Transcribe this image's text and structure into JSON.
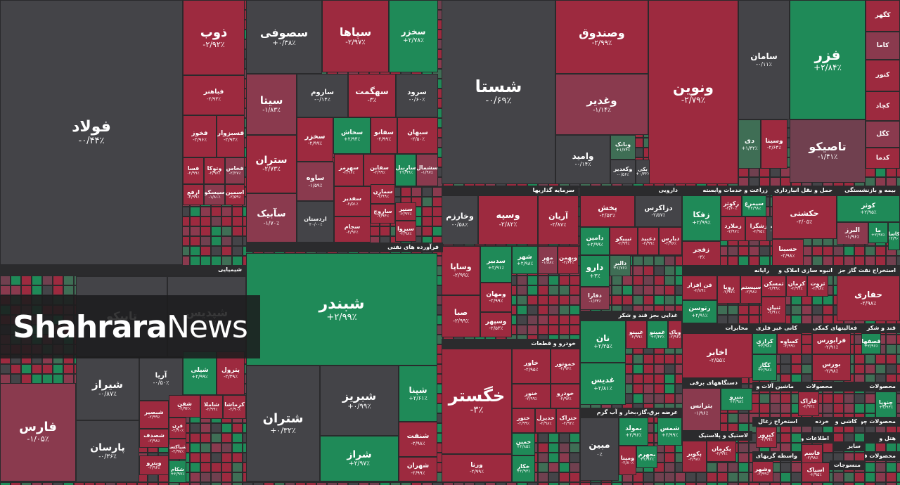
{
  "chart_data": {
    "type": "treemap",
    "colors": {
      "neg_strong": "#9d2a3f",
      "neg_mid": "#8a3a4e",
      "neg_light": "#70404f",
      "neutral": "#444448",
      "pos_light": "#3f6e55",
      "pos_strong": "#1f8a58",
      "sector_bar": "#2b2b2d"
    },
    "sectors": [
      "شیمیایی",
      "فرآورده های نفتی",
      "سرمایه گذاریها",
      "دارویی",
      "زراعت و خدمات وابسته",
      "حمل و نقل انبارداری و",
      "بیمه و بازنشستگی",
      "رایانه",
      "انبوه سازی املاک و",
      "استخراج نفت گاز جز",
      "غذایی بجز قند و شکر",
      "خودرو و قطعات",
      "مخابرات",
      "کانی غیر فلزی",
      "فعالیتهای کمکی",
      "قند و شکر",
      "دستگاههای برقی",
      "ماشین آلات و",
      "محصولات",
      "عرضه برق،گاز،بخار و آب گرم",
      "استخراج زغال",
      "لاستیک و پلاستیک",
      "واسطه گریهای",
      "اطلاعات و",
      "محصولات چوبی",
      "کاشی و",
      "هتل و",
      "منسوجات",
      "محصولات فلزی",
      "خرده",
      "سایر"
    ],
    "tiles": [
      {
        "name": "فولاد",
        "change": "-۰/۴۴٪",
        "color": "#444448"
      },
      {
        "name": "ذوب",
        "change": "-۲/۹۲٪",
        "color": "#9d2a3f"
      },
      {
        "name": "فباهنر",
        "change": "-۲/۹۳٪",
        "color": "#9d2a3f"
      },
      {
        "name": "فخوز",
        "change": "-۲/۹۶٪",
        "color": "#9d2a3f"
      },
      {
        "name": "فسبزوار",
        "change": "-۲/۹۳٪",
        "color": "#9d2a3f"
      },
      {
        "name": "فسا",
        "change": "-۲/۹۹٪",
        "color": "#9d2a3f"
      },
      {
        "name": "وتوکا",
        "change": "-۲/۹۷٪",
        "color": "#9d2a3f"
      },
      {
        "name": "فخاس",
        "change": "-۲/۲۷٪",
        "color": "#8a3a4e"
      },
      {
        "name": "ارفع",
        "change": "-۲/۹۹٪",
        "color": "#9d2a3f"
      },
      {
        "name": "سیسکو",
        "change": "-۱/۸۱٪",
        "color": "#8a3a4e"
      },
      {
        "name": "اسمین",
        "change": "-۲/۵۹٪",
        "color": "#9d2a3f"
      },
      {
        "name": "سصوفی",
        "change": "+۰/۳۸٪",
        "color": "#444448"
      },
      {
        "name": "سپاها",
        "change": "-۲/۹۷٪",
        "color": "#9d2a3f"
      },
      {
        "name": "سخزر",
        "change": "+۲/۷۸٪",
        "color": "#1f8a58"
      },
      {
        "name": "سیتا",
        "change": "-۱/۸۳٪",
        "color": "#8a3a4e"
      },
      {
        "name": "ساروم",
        "change": "-۰/۱۴٪",
        "color": "#444448"
      },
      {
        "name": "سهگمت",
        "change": "-۳٪",
        "color": "#9d2a3f"
      },
      {
        "name": "سرود",
        "change": "-۰/۶۰٪",
        "color": "#444448"
      },
      {
        "name": "سخزر",
        "change": "-۲/۹۹٪",
        "color": "#9d2a3f"
      },
      {
        "name": "سخاش",
        "change": "+۲/۹۴٪",
        "color": "#1f8a58"
      },
      {
        "name": "سفانو",
        "change": "-۲/۹۹٪",
        "color": "#9d2a3f"
      },
      {
        "name": "سبهان",
        "change": "-۲/۵۰٪",
        "color": "#9d2a3f"
      },
      {
        "name": "ستران",
        "change": "-۲/۷۳٪",
        "color": "#9d2a3f"
      },
      {
        "name": "ساوه",
        "change": "-۱/۵۹٪",
        "color": "#8a3a4e"
      },
      {
        "name": "سهرمز",
        "change": "-۲/۹۶٪",
        "color": "#9d2a3f"
      },
      {
        "name": "سفاین",
        "change": "-۲/۹۹٪",
        "color": "#9d2a3f"
      },
      {
        "name": "ساربیل",
        "change": "+۲/۹۹٪",
        "color": "#1f8a58"
      },
      {
        "name": "سشمال",
        "change": "-۱/۹۷٪",
        "color": "#8a3a4e"
      },
      {
        "name": "سمازن",
        "change": "-۲/۹۹٪",
        "color": "#9d2a3f"
      },
      {
        "name": "سآبیک",
        "change": "-۱/۷۰٪",
        "color": "#8a3a4e"
      },
      {
        "name": "اردستان",
        "change": "+۰/۰۰٪",
        "color": "#444448"
      },
      {
        "name": "سفدیر",
        "change": "-۲/۵۱٪",
        "color": "#9d2a3f"
      },
      {
        "name": "ساروج",
        "change": "-۲/۹۴٪",
        "color": "#9d2a3f"
      },
      {
        "name": "سنیر",
        "change": "-۲/۹۲٪",
        "color": "#9d2a3f"
      },
      {
        "name": "سجام",
        "change": "-۲/۹۶٪",
        "color": "#9d2a3f"
      },
      {
        "name": "سیزوا",
        "change": "-۲/۹۸٪",
        "color": "#9d2a3f"
      },
      {
        "name": "شستا",
        "change": "-۰/۶۹٪",
        "color": "#444448"
      },
      {
        "name": "وصندوق",
        "change": "-۲/۹۹٪",
        "color": "#9d2a3f"
      },
      {
        "name": "ونوین",
        "change": "-۲/۷۹٪",
        "color": "#9d2a3f"
      },
      {
        "name": "وغدیر",
        "change": "-۱/۱۴٪",
        "color": "#8a3a4e"
      },
      {
        "name": "وامید",
        "change": "-۰/۱۴٪",
        "color": "#444448"
      },
      {
        "name": "وبانک",
        "change": "+۱/۷۴٪",
        "color": "#3f6e55"
      },
      {
        "name": "وکغدیر",
        "change": "-۰/۵۶٪",
        "color": "#444448"
      },
      {
        "name": "بکی",
        "change": "+۰/۳۲٪",
        "color": "#444448"
      },
      {
        "name": "سامان",
        "change": "-۰/۱۱٪",
        "color": "#444448"
      },
      {
        "name": "فزر",
        "change": "+۲/۸۴٪",
        "color": "#1f8a58"
      },
      {
        "name": "دی",
        "change": "+۱/۳۲٪",
        "color": "#3f6e55"
      },
      {
        "name": "وسینا",
        "change": "-۲/۶۴٪",
        "color": "#9d2a3f"
      },
      {
        "name": "تاصیکو",
        "change": "-۱/۴۱٪",
        "color": "#70404f"
      },
      {
        "name": "کگهر",
        "change": "",
        "color": "#9d2a3f"
      },
      {
        "name": "کاما",
        "change": "",
        "color": "#8a3a4e"
      },
      {
        "name": "کنور",
        "change": "",
        "color": "#9d2a3f"
      },
      {
        "name": "کچاد",
        "change": "",
        "color": "#9d2a3f"
      },
      {
        "name": "کگل",
        "change": "",
        "color": "#8a3a4e"
      },
      {
        "name": "کدما",
        "change": "",
        "color": "#9d2a3f"
      },
      {
        "name": "شپدیس",
        "change": "-۲/۷۵٪",
        "color": "#444448"
      },
      {
        "name": "تاپیکو",
        "change": "",
        "color": "#444448"
      },
      {
        "name": "شیراز",
        "change": "-۰/۸۷٪",
        "color": "#444448"
      },
      {
        "name": "آریا",
        "change": "-۰/۵۰٪",
        "color": "#444448"
      },
      {
        "name": "شپلی",
        "change": "+۲/۹۹٪",
        "color": "#1f8a58"
      },
      {
        "name": "پترول",
        "change": "-۲/۳۹٪",
        "color": "#9d2a3f"
      },
      {
        "name": "فارس",
        "change": "-۱/۰۵٪",
        "color": "#8a3a4e"
      },
      {
        "name": "پارسان",
        "change": "-۰/۳۶٪",
        "color": "#444448"
      },
      {
        "name": "شبصیر",
        "change": "-۲/۹۹٪",
        "color": "#9d2a3f"
      },
      {
        "name": "شفن",
        "change": "-۲/۹۲٪",
        "color": "#9d2a3f"
      },
      {
        "name": "شاملا",
        "change": "-۲/۹۹٪",
        "color": "#9d2a3f"
      },
      {
        "name": "کرماشا",
        "change": "-۲/۹۰٪",
        "color": "#9d2a3f"
      },
      {
        "name": "شصدف",
        "change": "-۲/۹۸٪",
        "color": "#9d2a3f"
      },
      {
        "name": "قرن",
        "change": "-۲/۹۰٪",
        "color": "#9d2a3f"
      },
      {
        "name": "شپاکسا",
        "change": "-۲/۹۷٪",
        "color": "#9d2a3f"
      },
      {
        "name": "ویترو",
        "change": "-۲/۹۶٪",
        "color": "#9d2a3f"
      },
      {
        "name": "شکام",
        "change": "+۲/۹۷٪",
        "color": "#1f8a58"
      },
      {
        "name": "شبندر",
        "change": "+۲/۹۹٪",
        "color": "#1f8a58"
      },
      {
        "name": "شتران",
        "change": "+۰/۳۲٪",
        "color": "#444448"
      },
      {
        "name": "شبریز",
        "change": "+۰/۹۹٪",
        "color": "#444448"
      },
      {
        "name": "شراز",
        "change": "+۲/۹۷٪",
        "color": "#1f8a58"
      },
      {
        "name": "شپنا",
        "change": "+۲/۶۱٪",
        "color": "#1f8a58"
      },
      {
        "name": "شنفت",
        "change": "-۲/۹۸٪",
        "color": "#9d2a3f"
      },
      {
        "name": "شهران",
        "change": "-۲/۹۹٪",
        "color": "#9d2a3f"
      },
      {
        "name": "وخارزم",
        "change": "-۰/۵۸٪",
        "color": "#444448"
      },
      {
        "name": "وسپه",
        "change": "-۲/۸۲٪",
        "color": "#9d2a3f"
      },
      {
        "name": "آریان",
        "change": "-۲/۸۷٪",
        "color": "#9d2a3f"
      },
      {
        "name": "وساپا",
        "change": "-۲/۹۹٪",
        "color": "#9d2a3f"
      },
      {
        "name": "صبا",
        "change": "-۲/۹۹٪",
        "color": "#9d2a3f"
      },
      {
        "name": "سدبیر",
        "change": "+۲/۹۱٪",
        "color": "#1f8a58"
      },
      {
        "name": "شهر",
        "change": "+۲/۹۸٪",
        "color": "#1f8a58"
      },
      {
        "name": "مهر",
        "change": "-۱/۸۸٪",
        "color": "#8a3a4e"
      },
      {
        "name": "وبهمن",
        "change": "-۲/۶۴٪",
        "color": "#9d2a3f"
      },
      {
        "name": "ومهان",
        "change": "-۲/۹۹٪",
        "color": "#9d2a3f"
      },
      {
        "name": "وسپهر",
        "change": "-۲/۵۳٪",
        "color": "#9d2a3f"
      },
      {
        "name": "پخش",
        "change": "-۲/۵۳٪",
        "color": "#9d2a3f"
      },
      {
        "name": "دزاکرس",
        "change": "-۲/۵۷٪",
        "color": "#444448"
      },
      {
        "name": "دامین",
        "change": "+۲/۹۹٪",
        "color": "#1f8a58"
      },
      {
        "name": "تیپیکو",
        "change": "-۲/۹۹٪",
        "color": "#9d2a3f"
      },
      {
        "name": "دعبید",
        "change": "-۲/۹۹٪",
        "color": "#9d2a3f"
      },
      {
        "name": "دیارس",
        "change": "-۲/۹۶٪",
        "color": "#9d2a3f"
      },
      {
        "name": "دارو",
        "change": "+۳٪",
        "color": "#1f8a58"
      },
      {
        "name": "دالبر",
        "change": "+۱/۷۶٪",
        "color": "#3f6e55"
      },
      {
        "name": "دفارا",
        "change": "-۱/۶۳٪",
        "color": "#8a3a4e"
      },
      {
        "name": "زفکا",
        "change": "+۲/۹۹٪",
        "color": "#1f8a58"
      },
      {
        "name": "زکوثر",
        "change": "-۲/۶۰٪",
        "color": "#9d2a3f"
      },
      {
        "name": "سیمرغ",
        "change": "+۲/۹۸٪",
        "color": "#1f8a58"
      },
      {
        "name": "زملارد",
        "change": "-۲/۹۷٪",
        "color": "#9d2a3f"
      },
      {
        "name": "زشگزا",
        "change": "-۲/۹۵٪",
        "color": "#9d2a3f"
      },
      {
        "name": "لبسه",
        "change": "-۰/۵۳٪",
        "color": "#444448"
      },
      {
        "name": "زفجر",
        "change": "-۳٪",
        "color": "#9d2a3f"
      },
      {
        "name": "حکشتی",
        "change": "-۲/۰۵٪",
        "color": "#9d2a3f"
      },
      {
        "name": "حسینا",
        "change": "-۲/۹۸٪",
        "color": "#9d2a3f"
      },
      {
        "name": "کوثر",
        "change": "+۲/۹۵٪",
        "color": "#1f8a58"
      },
      {
        "name": "البرز",
        "change": "-۱/۹۶٪",
        "color": "#8a3a4e"
      },
      {
        "name": "ما",
        "change": "+۲/۹۷٪",
        "color": "#1f8a58"
      },
      {
        "name": "کاسا",
        "change": "+۲/۹۰٪",
        "color": "#1f8a58"
      },
      {
        "name": "فن افزار",
        "change": "-۲/۸۹٪",
        "color": "#9d2a3f"
      },
      {
        "name": "رتوسن",
        "change": "+۲/۹۱٪",
        "color": "#1f8a58"
      },
      {
        "name": "رویا",
        "change": "-۲/۹۷٪",
        "color": "#9d2a3f"
      },
      {
        "name": "سیستم",
        "change": "-۲/۹۸٪",
        "color": "#9d2a3f"
      },
      {
        "name": "ثمسکن",
        "change": "-۲/۹۹٪",
        "color": "#9d2a3f"
      },
      {
        "name": "ثنیان",
        "change": "-۲/۹۱٪",
        "color": "#9d2a3f"
      },
      {
        "name": "کرمان",
        "change": "-۲/۹۹٪",
        "color": "#9d2a3f"
      },
      {
        "name": "ثروت",
        "change": "-۲/۹۸٪",
        "color": "#9d2a3f"
      },
      {
        "name": "حفاری",
        "change": "-۲/۹۸٪",
        "color": "#9d2a3f"
      },
      {
        "name": "نان",
        "change": "+۲/۳۵٪",
        "color": "#1f8a58"
      },
      {
        "name": "غبینو",
        "change": "-۲/۹۹٪",
        "color": "#9d2a3f"
      },
      {
        "name": "غمینو",
        "change": "+۲/۴۳٪",
        "color": "#1f8a58"
      },
      {
        "name": "وپاک",
        "change": "-۲/۹۶٪",
        "color": "#9d2a3f"
      },
      {
        "name": "غدیس",
        "change": "+۲/۸۱٪",
        "color": "#1f8a58"
      },
      {
        "name": "خگستر",
        "change": "-۳٪",
        "color": "#9d2a3f"
      },
      {
        "name": "خاور",
        "change": "-۲/۹۵٪",
        "color": "#9d2a3f"
      },
      {
        "name": "خموتور",
        "change": "-۲/۹۶٪",
        "color": "#9d2a3f"
      },
      {
        "name": "خنور",
        "change": "-۲/۹۹٪",
        "color": "#9d2a3f"
      },
      {
        "name": "خودرو",
        "change": "-۲/۹۷٪",
        "color": "#9d2a3f"
      },
      {
        "name": "ختور",
        "change": "-۲/۹۹٪",
        "color": "#9d2a3f"
      },
      {
        "name": "خدیزل",
        "change": "-۲/۹۸٪",
        "color": "#9d2a3f"
      },
      {
        "name": "ختراک",
        "change": "-۲/۹۲٪",
        "color": "#9d2a3f"
      },
      {
        "name": "خمین",
        "change": "+۲/۸۵٪",
        "color": "#1f8a58"
      },
      {
        "name": "خکار",
        "change": "+۲/۹۳٪",
        "color": "#1f8a58"
      },
      {
        "name": "ورنا",
        "change": "-۲/۹۹٪",
        "color": "#9d2a3f"
      },
      {
        "name": "اخابر",
        "change": "-۲/۵۵٪",
        "color": "#9d2a3f"
      },
      {
        "name": "کرازی",
        "change": "+۲/۹۸٪",
        "color": "#1f8a58"
      },
      {
        "name": "کساوه",
        "change": "-۲/۹۹٪",
        "color": "#9d2a3f"
      },
      {
        "name": "کگاز",
        "change": "+۲/۹۸٪",
        "color": "#1f8a58"
      },
      {
        "name": "فرابورس",
        "change": "-۲/۹۱٪",
        "color": "#9d2a3f"
      },
      {
        "name": "بورس",
        "change": "-۲/۹۸٪",
        "color": "#9d2a3f"
      },
      {
        "name": "قصفها",
        "change": "+۲/۹۶٪",
        "color": "#1f8a58"
      },
      {
        "name": "بترانس",
        "change": "-۱/۹۶٪",
        "color": "#8a3a4e"
      },
      {
        "name": "بنیرو",
        "change": "+۲/۹۸٪",
        "color": "#1f8a58"
      },
      {
        "name": "مبین",
        "change": "۰٪",
        "color": "#444448"
      },
      {
        "name": "بمولد",
        "change": "+۲/۹۶٪",
        "color": "#1f8a58"
      },
      {
        "name": "شمس",
        "change": "+۲/۹۹٪",
        "color": "#1f8a58"
      },
      {
        "name": "بجهرم",
        "change": "+۲/۹۶٪",
        "color": "#1f8a58"
      },
      {
        "name": "ومینا",
        "change": "-۲/۸۰٪",
        "color": "#9d2a3f"
      },
      {
        "name": "پکرمان",
        "change": "-۲/۹۹٪",
        "color": "#9d2a3f"
      },
      {
        "name": "پکویر",
        "change": "-۲/۹۸٪",
        "color": "#9d2a3f"
      },
      {
        "name": "فاراک",
        "change": "-۲/۹۲٪",
        "color": "#9d2a3f"
      },
      {
        "name": "چنوپا",
        "change": "+۲/۹۴٪",
        "color": "#1f8a58"
      },
      {
        "name": "کپرور",
        "change": "-۲/۹۹٪",
        "color": "#9d2a3f"
      },
      {
        "name": "فاسم",
        "change": "-۲/۹۸٪",
        "color": "#9d2a3f"
      },
      {
        "name": "وشهر",
        "change": "-۲/۹۹٪",
        "color": "#9d2a3f"
      },
      {
        "name": "اسیاک",
        "change": "-۲/۹۵٪",
        "color": "#9d2a3f"
      }
    ]
  },
  "watermark": {
    "bold": "Shahrara",
    "light": "News"
  }
}
